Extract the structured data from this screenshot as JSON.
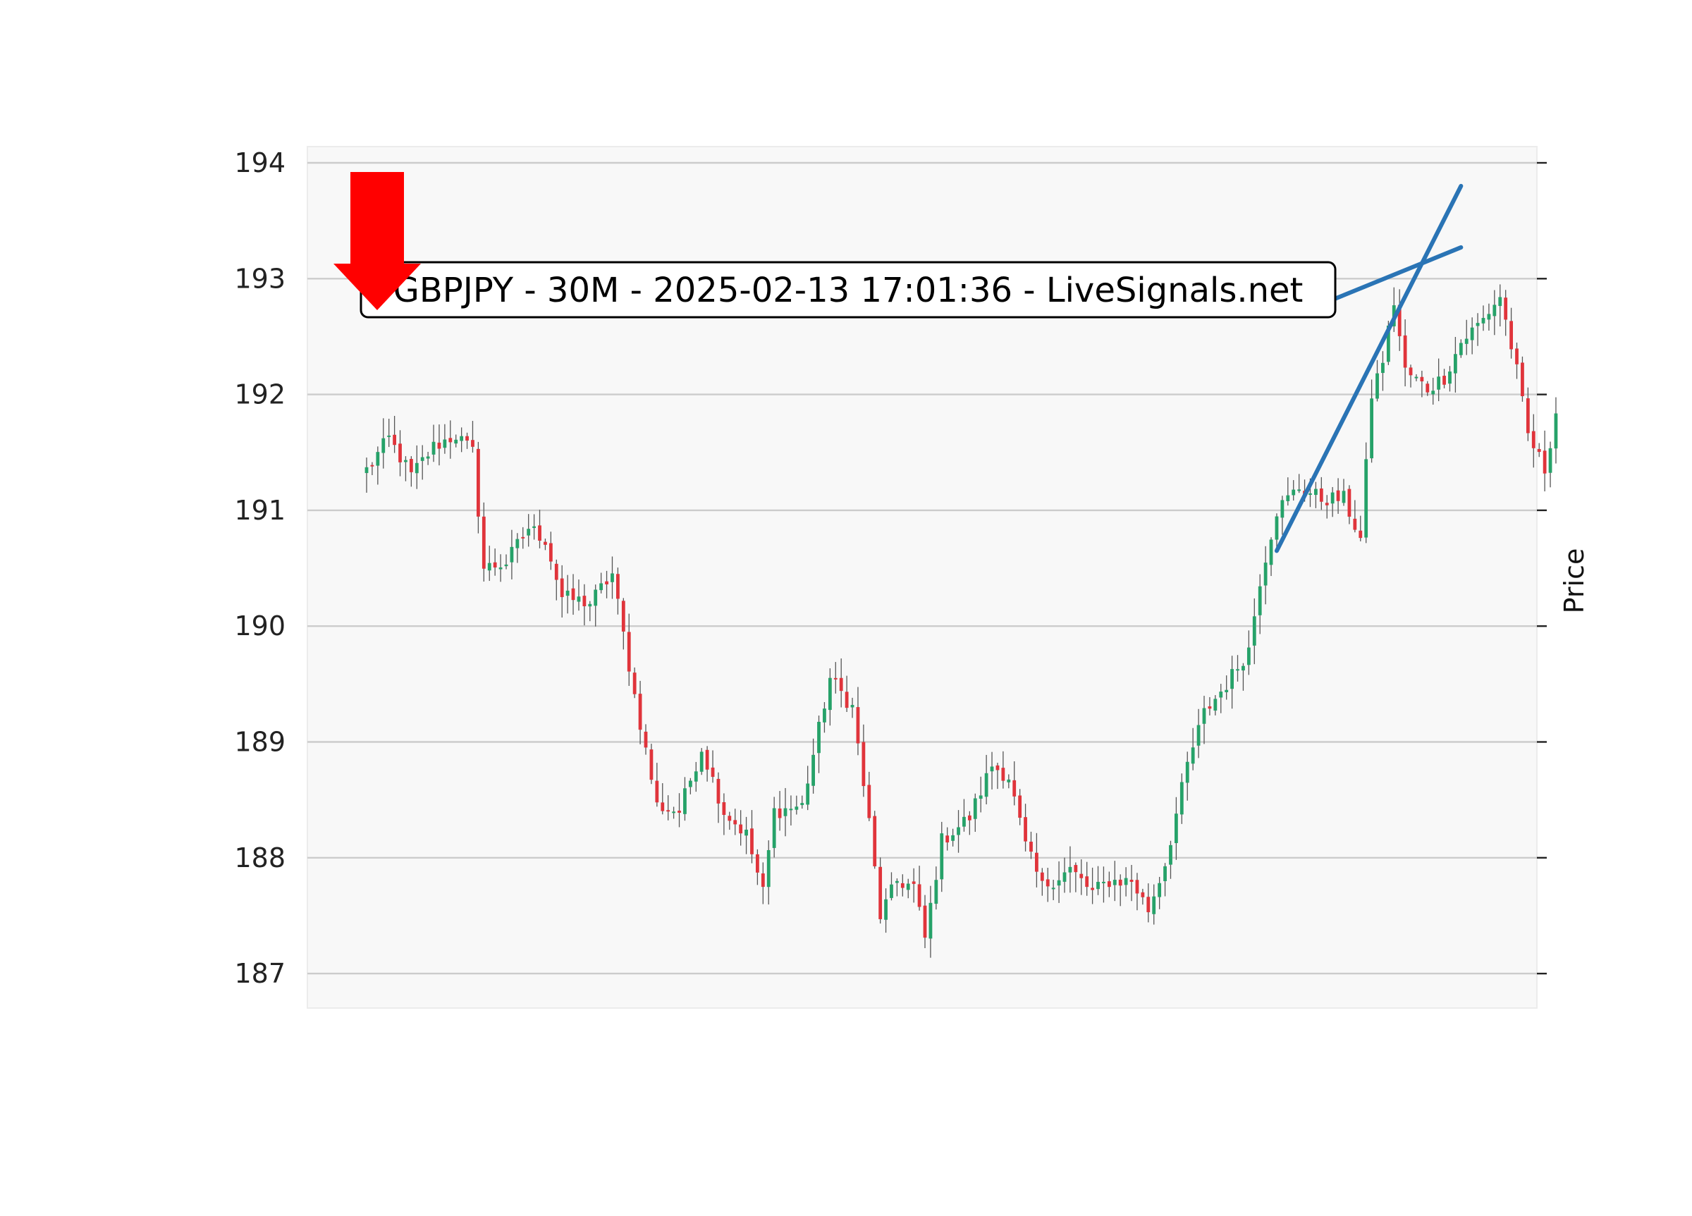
{
  "chart_data": {
    "type": "candlestick",
    "title": "GBPJPY - 30M - 2025-02-13 17:01:36 - LiveSignals.net",
    "ylabel": "Price",
    "xlabel": "",
    "ylim": [
      186.7,
      194.15
    ],
    "yticks": [
      "187",
      "188",
      "189",
      "190",
      "191",
      "192",
      "193",
      "194"
    ],
    "grid": "horizontal",
    "y_axis_side": "right-label",
    "colors": {
      "up": "#26a269",
      "down": "#e0343b",
      "wick": "#555555",
      "trendline": "#2a74b5",
      "signal_arrow": "#ff0000",
      "plot_background": "#f8f8f8",
      "gridline": "#cccccc"
    },
    "signal": {
      "direction": "down",
      "icon": "down-arrow-icon",
      "near_bar": 1
    },
    "trendlines": [
      {
        "name": "",
        "from": {
          "bar": 163,
          "price": 190.65
        },
        "to": {
          "bar": 196,
          "price": 193.8
        }
      },
      {
        "name": "",
        "from": {
          "bar": 167,
          "price": 192.7
        },
        "to": {
          "bar": 196,
          "price": 193.27
        }
      }
    ],
    "close_path": [
      [
        0,
        191.35
      ],
      [
        4,
        191.62
      ],
      [
        8,
        191.3
      ],
      [
        12,
        191.55
      ],
      [
        16,
        191.65
      ],
      [
        19,
        191.5
      ],
      [
        21,
        190.5
      ],
      [
        25,
        190.55
      ],
      [
        29,
        190.85
      ],
      [
        32,
        190.75
      ],
      [
        35,
        190.25
      ],
      [
        40,
        190.2
      ],
      [
        44,
        190.45
      ],
      [
        48,
        189.4
      ],
      [
        52,
        188.45
      ],
      [
        56,
        188.4
      ],
      [
        60,
        188.95
      ],
      [
        64,
        188.4
      ],
      [
        68,
        188.2
      ],
      [
        71,
        187.7
      ],
      [
        73,
        188.4
      ],
      [
        78,
        188.45
      ],
      [
        83,
        189.55
      ],
      [
        87,
        189.3
      ],
      [
        90,
        188.3
      ],
      [
        92,
        187.5
      ],
      [
        95,
        187.8
      ],
      [
        98,
        187.75
      ],
      [
        100,
        187.3
      ],
      [
        103,
        188.15
      ],
      [
        108,
        188.35
      ],
      [
        112,
        188.8
      ],
      [
        115,
        188.7
      ],
      [
        118,
        188.1
      ],
      [
        121,
        187.75
      ],
      [
        126,
        187.9
      ],
      [
        130,
        187.7
      ],
      [
        133,
        187.8
      ],
      [
        137,
        187.8
      ],
      [
        140,
        187.55
      ],
      [
        143,
        187.95
      ],
      [
        147,
        188.8
      ],
      [
        150,
        189.25
      ],
      [
        154,
        189.5
      ],
      [
        158,
        189.8
      ],
      [
        160,
        190.4
      ],
      [
        163,
        191.0
      ],
      [
        167,
        191.2
      ],
      [
        171,
        191.1
      ],
      [
        175,
        191.1
      ],
      [
        178,
        190.75
      ],
      [
        180,
        192.0
      ],
      [
        182,
        192.3
      ],
      [
        184,
        192.8
      ],
      [
        186,
        192.2
      ],
      [
        190,
        192.05
      ],
      [
        193,
        192.15
      ],
      [
        196,
        192.45
      ],
      [
        200,
        192.65
      ],
      [
        203,
        192.85
      ],
      [
        206,
        192.2
      ],
      [
        208,
        191.65
      ],
      [
        211,
        191.35
      ],
      [
        213,
        191.85
      ]
    ],
    "bars": 214
  }
}
